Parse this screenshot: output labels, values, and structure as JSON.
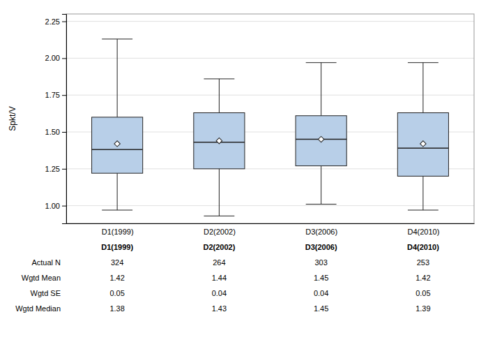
{
  "chart_data": {
    "type": "box",
    "ylabel": "Spkt/V",
    "categories": [
      "D1(1999)",
      "D2(2002)",
      "D3(2006)",
      "D4(2010)"
    ],
    "boxes": [
      {
        "q1": 1.22,
        "median": 1.38,
        "q3": 1.6,
        "whisker_low": 0.97,
        "whisker_high": 2.13,
        "mean": 1.42
      },
      {
        "q1": 1.25,
        "median": 1.43,
        "q3": 1.63,
        "whisker_low": 0.93,
        "whisker_high": 1.86,
        "mean": 1.44
      },
      {
        "q1": 1.27,
        "median": 1.45,
        "q3": 1.61,
        "whisker_low": 1.01,
        "whisker_high": 1.97,
        "mean": 1.45
      },
      {
        "q1": 1.2,
        "median": 1.39,
        "q3": 1.63,
        "whisker_low": 0.97,
        "whisker_high": 1.97,
        "mean": 1.42
      }
    ],
    "table_rows": [
      {
        "label": "Actual N",
        "values": [
          324,
          264,
          303,
          253
        ]
      },
      {
        "label": "Wgtd Mean",
        "values": [
          1.42,
          1.44,
          1.45,
          1.42
        ]
      },
      {
        "label": "Wgtd SE",
        "values": [
          0.05,
          0.04,
          0.04,
          0.05
        ]
      },
      {
        "label": "Wgtd Median",
        "values": [
          1.38,
          1.43,
          1.45,
          1.39
        ]
      }
    ],
    "color": "#b8cfe8",
    "ylim": [
      0.88,
      2.3
    ],
    "yticks": [
      {
        "value": 1.0,
        "label": "1.00"
      },
      {
        "value": 1.25,
        "label": "1.25"
      },
      {
        "value": 1.5,
        "label": "1.50"
      },
      {
        "value": 1.75,
        "label": "1.75"
      },
      {
        "value": 2.0,
        "label": "2.00"
      },
      {
        "value": 2.25,
        "label": "2.25"
      }
    ],
    "grid": true
  }
}
